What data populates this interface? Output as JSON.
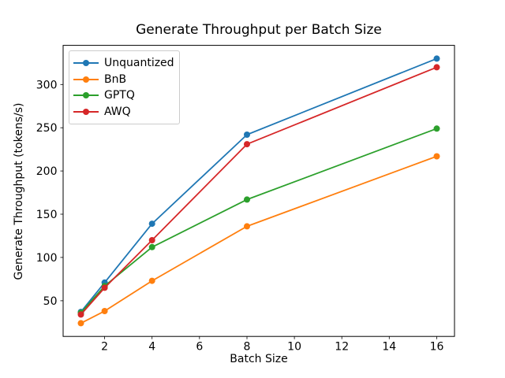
{
  "chart_data": {
    "type": "line",
    "title": "Generate Throughput per Batch Size",
    "xlabel": "Batch Size",
    "ylabel": "Generate Throughput (tokens/s)",
    "x": [
      1,
      2,
      4,
      8,
      16
    ],
    "series": [
      {
        "name": "Unquantized",
        "color": "#1f77b4",
        "values": [
          37,
          71,
          139,
          242,
          330
        ]
      },
      {
        "name": "BnB",
        "color": "#ff7f0e",
        "values": [
          24,
          38,
          73,
          136,
          217
        ]
      },
      {
        "name": "GPTQ",
        "color": "#2ca02c",
        "values": [
          36,
          67,
          112,
          167,
          249
        ]
      },
      {
        "name": "AWQ",
        "color": "#d62728",
        "values": [
          34,
          65,
          120,
          231,
          320
        ]
      }
    ],
    "xticks": [
      2,
      4,
      6,
      8,
      10,
      12,
      14,
      16
    ],
    "yticks": [
      50,
      100,
      150,
      200,
      250,
      300
    ],
    "xlim": [
      0.25,
      16.75
    ],
    "ylim": [
      8.7,
      345.3
    ],
    "grid": false,
    "legend_position": "upper-left",
    "marker": "o",
    "axis_color": "#000000",
    "background_color": "#ffffff"
  }
}
